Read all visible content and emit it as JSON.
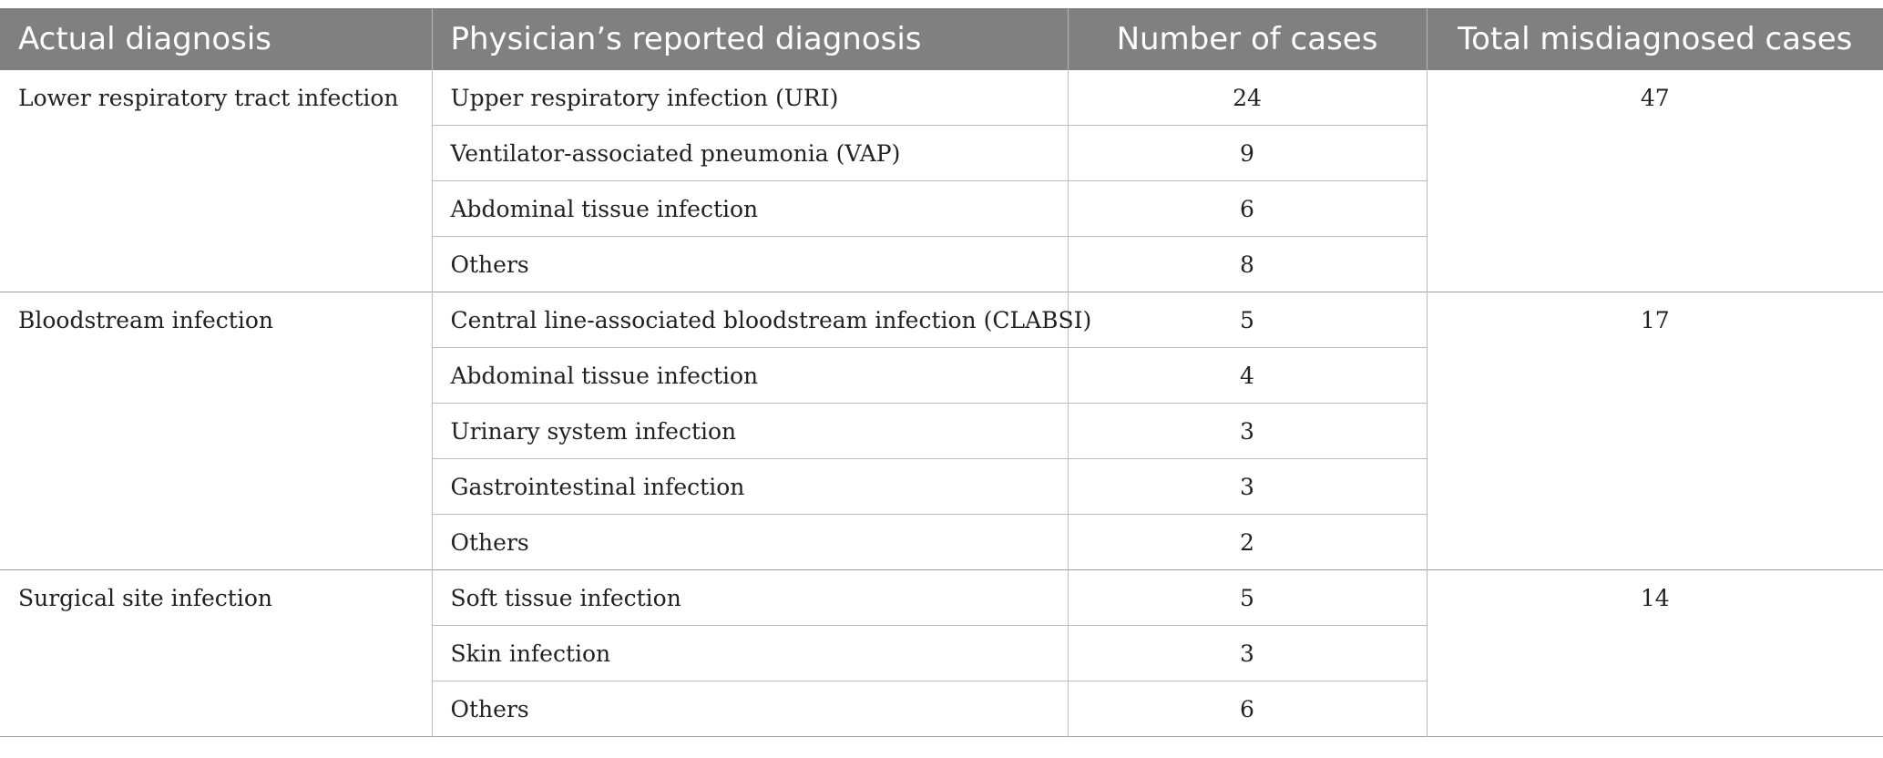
{
  "headers": [
    "Actual diagnosis",
    "Physician’s reported diagnosis",
    "Number of cases",
    "Total misdiagnosed cases"
  ],
  "groups": [
    {
      "actual": "Lower respiratory tract infection",
      "total": "47",
      "rows": [
        {
          "reported": "Upper respiratory infection (URI)",
          "cases": "24"
        },
        {
          "reported": "Ventilator-associated pneumonia (VAP)",
          "cases": "9"
        },
        {
          "reported": "Abdominal tissue infection",
          "cases": "6"
        },
        {
          "reported": "Others",
          "cases": "8"
        }
      ]
    },
    {
      "actual": "Bloodstream infection",
      "total": "17",
      "rows": [
        {
          "reported": "Central line-associated bloodstream infection (CLABSI)",
          "cases": "5"
        },
        {
          "reported": "Abdominal tissue infection",
          "cases": "4"
        },
        {
          "reported": "Urinary system infection",
          "cases": "3"
        },
        {
          "reported": "Gastrointestinal infection",
          "cases": "3"
        },
        {
          "reported": "Others",
          "cases": "2"
        }
      ]
    },
    {
      "actual": "Surgical site infection",
      "total": "14",
      "rows": [
        {
          "reported": "Soft tissue infection",
          "cases": "5"
        },
        {
          "reported": "Skin infection",
          "cases": "3"
        },
        {
          "reported": "Others",
          "cases": "6"
        }
      ]
    }
  ],
  "colors": {
    "header_bg": "#7f807f",
    "header_text": "#ffffff",
    "body_text": "#222222",
    "grid": "#bdbdbd"
  }
}
